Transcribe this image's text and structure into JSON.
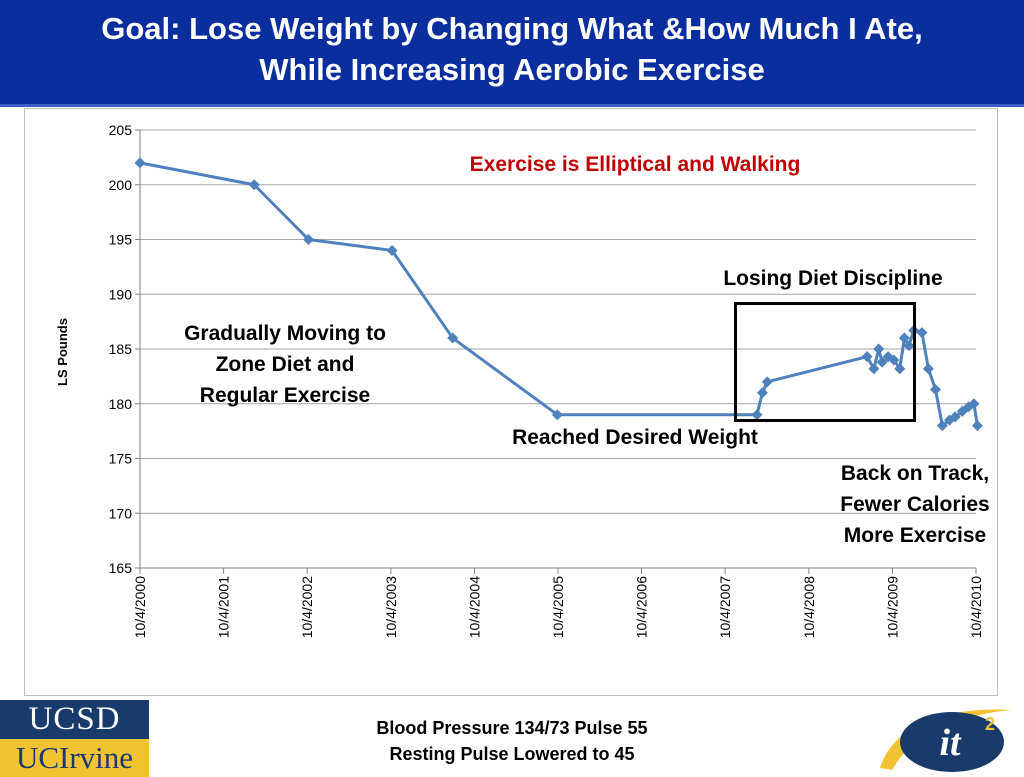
{
  "slide": {
    "title_line1": "Goal: Lose Weight by Changing What &How Much I Ate,",
    "title_line2": "While Increasing Aerobic Exercise",
    "footer_line1": "Blood Pressure 134/73 Pulse 55",
    "footer_line2": "Resting Pulse Lowered to 45",
    "logo_ucsd": "UCSD",
    "logo_uci": "UCIrvine",
    "logo_it2": "it",
    "logo_it2_sup": "2"
  },
  "annotations": {
    "exercise": "Exercise is Elliptical and Walking",
    "gradual_1": "Gradually Moving to",
    "gradual_2": "Zone Diet and",
    "gradual_3": "Regular Exercise",
    "reached": "Reached Desired Weight",
    "losing": "Losing Diet Discipline",
    "back_1": "Back on Track,",
    "back_2": "Fewer Calories",
    "back_3": "More Exercise"
  },
  "colors": {
    "header_bg": "#0a2e9e",
    "line": "#4f81bd",
    "annotation_red": "#c00000",
    "gridline": "#a6a6a6"
  },
  "chart_data": {
    "type": "line",
    "ylabel": "LS Pounds",
    "ylim": [
      165,
      205
    ],
    "yticks": [
      165,
      170,
      175,
      180,
      185,
      190,
      195,
      200,
      205
    ],
    "xlim": [
      "2000-10-04",
      "2010-10-04"
    ],
    "xticks": [
      "10/4/2000",
      "10/4/2001",
      "10/4/2002",
      "10/4/2003",
      "10/4/2004",
      "10/4/2005",
      "10/4/2006",
      "10/4/2007",
      "10/4/2008",
      "10/4/2009",
      "10/4/2010"
    ],
    "grid": "horizontal",
    "series": [
      {
        "x": [
          "2000-10-04",
          "2002-02-15",
          "2002-10-10",
          "2003-10-10",
          "2004-07-01",
          "2005-10-01",
          "2008-02-20",
          "2008-03-15",
          "2008-04-05",
          "2009-06-15",
          "2009-07-15",
          "2009-08-05",
          "2009-08-20",
          "2009-09-15",
          "2009-10-10",
          "2009-11-05",
          "2009-11-25",
          "2009-12-15",
          "2010-01-05",
          "2010-02-10",
          "2010-03-10",
          "2010-04-10",
          "2010-05-10",
          "2010-06-10",
          "2010-07-05",
          "2010-08-05",
          "2010-09-01",
          "2010-09-25",
          "2010-10-10"
        ],
        "values": [
          202,
          200,
          195,
          194,
          186,
          179,
          179,
          181,
          182,
          184.3,
          183.2,
          185,
          183.8,
          184.3,
          184,
          183.2,
          186,
          185.3,
          186.7,
          186.5,
          183.2,
          181.3,
          178,
          178.5,
          178.8,
          179.3,
          179.7,
          180,
          178
        ]
      }
    ]
  }
}
